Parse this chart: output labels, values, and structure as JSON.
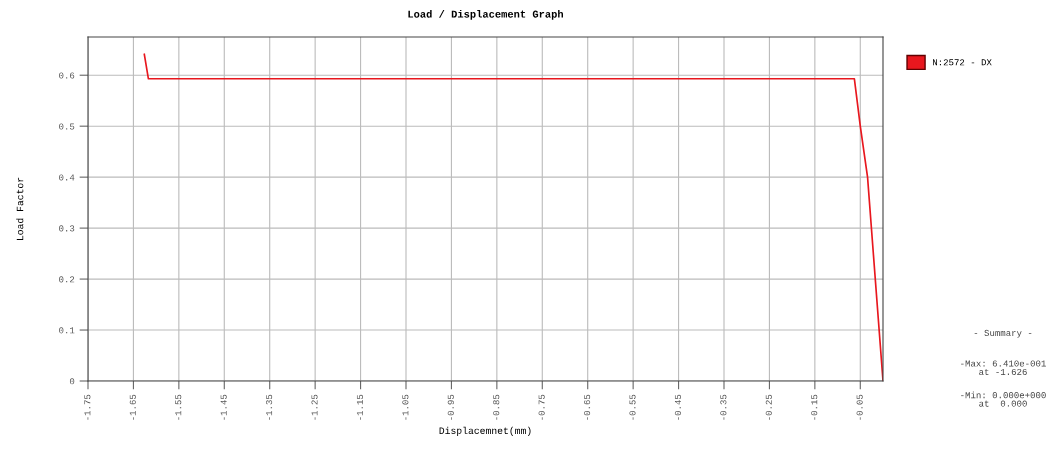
{
  "chart_data": {
    "type": "line",
    "title": "Load / Displacement Graph",
    "xlabel": "Displacemnet(mm)",
    "ylabel": "Load Factor",
    "series": [
      {
        "name": "N:2572 - DX",
        "color": "#e8171e",
        "x": [
          -1.626,
          -1.617,
          -1.063,
          -0.063,
          -0.05,
          -0.034,
          0.0
        ],
        "values": [
          0.641,
          0.593,
          0.593,
          0.593,
          0.5,
          0.4,
          0.0
        ]
      }
    ],
    "xlim": [
      -1.75,
      0.0
    ],
    "xticks": [
      -1.75,
      -1.65,
      -1.55,
      -1.45,
      -1.35,
      -1.25,
      -1.15,
      -1.05,
      -0.95,
      -0.85,
      -0.75,
      -0.65,
      -0.55,
      -0.45,
      -0.35,
      -0.25,
      -0.15,
      -0.05
    ],
    "ylim": [
      0,
      0.675
    ],
    "yticks": [
      0,
      0.1,
      0.2,
      0.3,
      0.4,
      0.5,
      0.6
    ],
    "grid": true,
    "legend": "top right",
    "marker": "none",
    "line_style": "solid",
    "annotations": [
      "- Summary -",
      "-Max: 6.410e-001\nat -1.626",
      "-Min: 0.000e+000\nat  0.000"
    ]
  }
}
